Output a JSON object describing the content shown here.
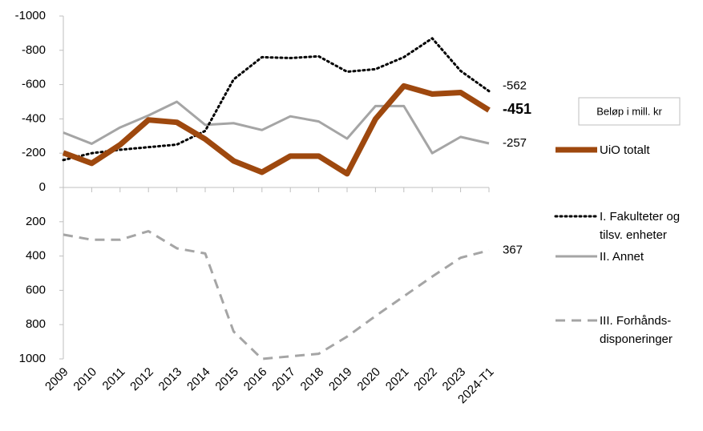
{
  "chart_data": {
    "type": "line",
    "annotation": "Beløp i mill. kr",
    "categories": [
      "2009",
      "2010",
      "2011",
      "2012",
      "2013",
      "2014",
      "2015",
      "2016",
      "2017",
      "2018",
      "2019",
      "2020",
      "2021",
      "2022",
      "2023",
      "2024-T1"
    ],
    "ylim": [
      1000,
      -1000
    ],
    "yticks": [
      -1000,
      -800,
      -600,
      -400,
      -200,
      0,
      200,
      400,
      600,
      800,
      1000
    ],
    "series": [
      {
        "name": "UiO totalt",
        "color": "#9E480E",
        "style": "solid",
        "line_width": 7,
        "values": [
          -202,
          -141,
          -249,
          -394,
          -380,
          -282,
          -155,
          -89,
          -183,
          -183,
          -80,
          -399,
          -592,
          -545,
          -554,
          -451
        ]
      },
      {
        "name": "I. Fakulteter og tilsv. enheter",
        "color": "#000000",
        "style": "dotted",
        "line_width": 3,
        "values": [
          -160,
          -200,
          -220,
          -235,
          -250,
          -330,
          -630,
          -760,
          -755,
          -765,
          -675,
          -690,
          -760,
          -870,
          -680,
          -562
        ]
      },
      {
        "name": "II. Annet",
        "color": "#A5A5A5",
        "style": "solid",
        "line_width": 3,
        "values": [
          -320,
          -255,
          -350,
          -420,
          -500,
          -365,
          -375,
          -335,
          -415,
          -385,
          -285,
          -475,
          -475,
          -200,
          -295,
          -257
        ]
      },
      {
        "name": "III. Forhånds-disponeringer",
        "color": "#A5A5A5",
        "style": "dashed",
        "line_width": 3,
        "values": [
          275,
          305,
          305,
          255,
          355,
          385,
          840,
          1000,
          985,
          970,
          870,
          750,
          635,
          520,
          410,
          367
        ]
      }
    ]
  }
}
